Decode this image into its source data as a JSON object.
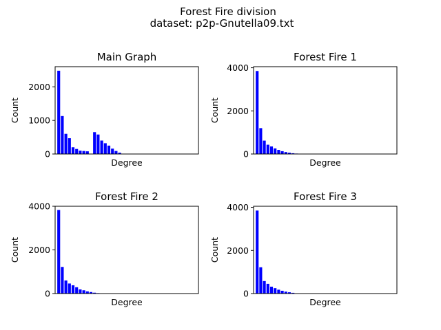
{
  "figure": {
    "title_line1": "Forest Fire division",
    "title_line2": "dataset: p2p-Gnutella09.txt"
  },
  "colors": {
    "bar": "#0000ff",
    "axis": "#000000",
    "background": "#ffffff"
  },
  "chart_data": [
    {
      "type": "bar",
      "title": "Main Graph",
      "xlabel": "Degree",
      "ylabel": "Count",
      "xlim": [
        0,
        40
      ],
      "ylim": [
        0,
        2600
      ],
      "yticks": [
        "0",
        "1000",
        "2000"
      ],
      "ytick_values": [
        0,
        1000,
        2000
      ],
      "x": [
        1,
        2,
        3,
        4,
        5,
        6,
        7,
        8,
        9,
        11,
        12,
        13,
        14,
        15,
        16,
        17,
        18
      ],
      "values": [
        2480,
        1130,
        600,
        470,
        200,
        150,
        100,
        90,
        80,
        650,
        580,
        400,
        320,
        250,
        160,
        90,
        40
      ]
    },
    {
      "type": "bar",
      "title": "Forest Fire 1",
      "xlabel": "Degree",
      "ylabel": "Count",
      "xlim": [
        0,
        40
      ],
      "ylim": [
        0,
        4050
      ],
      "yticks": [
        "0",
        "2000",
        "4000"
      ],
      "ytick_values": [
        0,
        2000,
        4000
      ],
      "x": [
        1,
        2,
        3,
        4,
        5,
        6,
        7,
        8,
        9,
        10,
        11,
        12,
        13
      ],
      "values": [
        3850,
        1200,
        620,
        430,
        350,
        260,
        190,
        130,
        90,
        60,
        35,
        20,
        10
      ]
    },
    {
      "type": "bar",
      "title": "Forest Fire 2",
      "xlabel": "Degree",
      "ylabel": "Count",
      "xlim": [
        0,
        40
      ],
      "ylim": [
        0,
        4000
      ],
      "yticks": [
        "0",
        "2000",
        "4000"
      ],
      "ytick_values": [
        0,
        2000,
        4000
      ],
      "x": [
        1,
        2,
        3,
        4,
        5,
        6,
        7,
        8,
        9,
        10,
        11,
        12
      ],
      "values": [
        3830,
        1220,
        600,
        460,
        380,
        290,
        190,
        150,
        100,
        70,
        40,
        20
      ]
    },
    {
      "type": "bar",
      "title": "Forest Fire 3",
      "xlabel": "Degree",
      "ylabel": "Count",
      "xlim": [
        0,
        40
      ],
      "ylim": [
        0,
        4050
      ],
      "yticks": [
        "0",
        "2000",
        "4000"
      ],
      "ytick_values": [
        0,
        2000,
        4000
      ],
      "x": [
        1,
        2,
        3,
        4,
        5,
        6,
        7,
        8,
        9,
        10,
        11,
        12
      ],
      "values": [
        3850,
        1220,
        580,
        450,
        320,
        250,
        180,
        130,
        90,
        60,
        35,
        15
      ]
    }
  ]
}
